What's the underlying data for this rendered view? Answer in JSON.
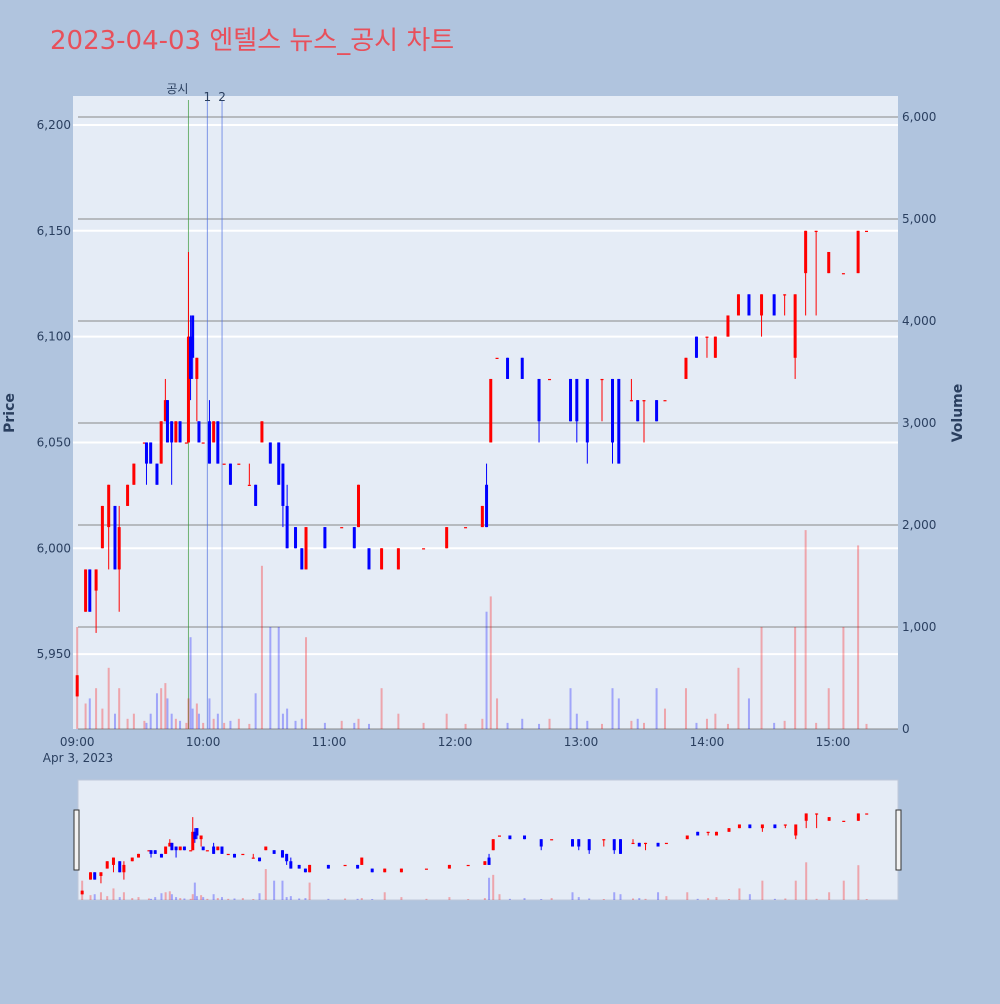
{
  "chart_data": {
    "type": "candlestick",
    "title": "2023-04-03 엔텔스 뉴스_공시 차트",
    "y_label": "Price",
    "y2_label": "Volume",
    "x_date_label": "Apr 3, 2023",
    "increasing_color": "#ff0000",
    "decreasing_color": "#0000ff",
    "xlim": [
      "08:58",
      "15:31"
    ],
    "xticks": [
      "09:00",
      "10:00",
      "11:00",
      "12:00",
      "13:00",
      "14:00",
      "15:00"
    ],
    "ylim": [
      5914.6,
      6213.7
    ],
    "yticks": [
      {
        "value": 5950,
        "label": "5,950"
      },
      {
        "value": 6000,
        "label": "6,000"
      },
      {
        "value": 6050,
        "label": "6,050"
      },
      {
        "value": 6100,
        "label": "6,100"
      },
      {
        "value": 6150,
        "label": "6,150"
      },
      {
        "value": 6200,
        "label": "6,200"
      }
    ],
    "y2lim": [
      0,
      6206
    ],
    "y2ticks": [
      0,
      {
        "value": 1000,
        "label": "1,000"
      },
      {
        "value": 2000,
        "label": "2,000"
      },
      {
        "value": 3000,
        "label": "3,000"
      },
      {
        "value": 4000,
        "label": "4,000"
      },
      {
        "value": 5000,
        "label": "5,000"
      },
      {
        "value": 6000,
        "label": "6,000"
      }
    ],
    "annotations": [
      {
        "x": "09:53",
        "label": "공시",
        "color": "#3a9a3a"
      },
      {
        "x": "10:02",
        "label": "1",
        "color": "#4f6fe0"
      },
      {
        "x": "10:09",
        "label": "2",
        "color": "#4f6fe0"
      }
    ],
    "x": [
      "09:00",
      "09:04",
      "09:06",
      "09:09",
      "09:12",
      "09:15",
      "09:18",
      "09:20",
      "09:24",
      "09:27",
      "09:32",
      "09:33",
      "09:35",
      "09:38",
      "09:40",
      "09:42",
      "09:43",
      "09:45",
      "09:47",
      "09:49",
      "09:52",
      "09:53",
      "09:54",
      "09:55",
      "09:57",
      "09:58",
      "10:00",
      "10:03",
      "10:05",
      "10:07",
      "10:10",
      "10:13",
      "10:17",
      "10:22",
      "10:25",
      "10:28",
      "10:32",
      "10:36",
      "10:38",
      "10:40",
      "10:44",
      "10:47",
      "10:49",
      "10:58",
      "11:06",
      "11:12",
      "11:14",
      "11:19",
      "11:25",
      "11:33",
      "11:45",
      "11:56",
      "12:05",
      "12:13",
      "12:15",
      "12:17",
      "12:20",
      "12:25",
      "12:32",
      "12:40",
      "12:45",
      "12:55",
      "12:58",
      "13:03",
      "13:10",
      "13:15",
      "13:18",
      "13:24",
      "13:27",
      "13:30",
      "13:36",
      "13:40",
      "13:50",
      "13:55",
      "14:00",
      "14:04",
      "14:10",
      "14:15",
      "14:20",
      "14:26",
      "14:32",
      "14:37",
      "14:42",
      "14:47",
      "14:52",
      "14:58",
      "15:05",
      "15:12",
      "15:16"
    ],
    "open": [
      5930,
      5970,
      5990,
      5980,
      6000,
      6010,
      6020,
      5990,
      6020,
      6030,
      6050,
      6050,
      6050,
      6040,
      6040,
      6060,
      6070,
      6060,
      6050,
      6060,
      6050,
      6050,
      6100,
      6110,
      6080,
      6060,
      6050,
      6060,
      6050,
      6060,
      6040,
      6040,
      6040,
      6030,
      6030,
      6050,
      6050,
      6050,
      6040,
      6020,
      6010,
      6000,
      5990,
      6010,
      6010,
      6010,
      6010,
      6000,
      5990,
      5990,
      6000,
      6000,
      6010,
      6010,
      6030,
      6050,
      6090,
      6090,
      6090,
      6080,
      6080,
      6080,
      6080,
      6080,
      6080,
      6080,
      6080,
      6070,
      6070,
      6070,
      6070,
      6070,
      6080,
      6100,
      6100,
      6090,
      6100,
      6110,
      6120,
      6110,
      6120,
      6120,
      6090,
      6130,
      6150,
      6130,
      6130,
      6130,
      6150
    ],
    "high": [
      5940,
      5990,
      5990,
      5990,
      6020,
      6030,
      6020,
      6020,
      6030,
      6040,
      6050,
      6050,
      6050,
      6040,
      6060,
      6080,
      6070,
      6060,
      6060,
      6060,
      6050,
      6140,
      6110,
      6110,
      6090,
      6060,
      6050,
      6070,
      6060,
      6060,
      6040,
      6040,
      6040,
      6040,
      6030,
      6060,
      6050,
      6050,
      6040,
      6030,
      6010,
      6000,
      6010,
      6010,
      6010,
      6010,
      6030,
      6000,
      6000,
      6000,
      6000,
      6010,
      6010,
      6020,
      6040,
      6080,
      6090,
      6090,
      6090,
      6080,
      6080,
      6080,
      6080,
      6080,
      6080,
      6080,
      6080,
      6080,
      6070,
      6070,
      6070,
      6070,
      6090,
      6100,
      6100,
      6100,
      6110,
      6120,
      6120,
      6120,
      6120,
      6120,
      6120,
      6150,
      6150,
      6140,
      6130,
      6150,
      6150
    ],
    "low": [
      5930,
      5970,
      5970,
      5960,
      6000,
      5990,
      5990,
      5970,
      6020,
      6030,
      6050,
      6030,
      6040,
      6030,
      6040,
      6060,
      6050,
      6030,
      6050,
      6050,
      6050,
      6050,
      6070,
      6080,
      6060,
      6050,
      6050,
      6040,
      6050,
      6040,
      6040,
      6030,
      6040,
      6030,
      6020,
      6050,
      6040,
      6030,
      6010,
      6000,
      6000,
      5990,
      5990,
      6000,
      6010,
      6000,
      6010,
      5990,
      5990,
      5990,
      6000,
      6000,
      6010,
      6010,
      6010,
      6050,
      6090,
      6080,
      6080,
      6050,
      6080,
      6060,
      6050,
      6040,
      6060,
      6040,
      6040,
      6070,
      6060,
      6050,
      6060,
      6070,
      6080,
      6090,
      6090,
      6090,
      6100,
      6110,
      6110,
      6100,
      6110,
      6110,
      6080,
      6110,
      6110,
      6130,
      6130,
      6130,
      6150
    ],
    "close": [
      5940,
      5990,
      5970,
      5990,
      6020,
      6030,
      5990,
      6010,
      6030,
      6040,
      6050,
      6040,
      6040,
      6030,
      6060,
      6070,
      6050,
      6050,
      6060,
      6050,
      6050,
      6100,
      6080,
      6090,
      6090,
      6050,
      6050,
      6040,
      6060,
      6040,
      6040,
      6030,
      6040,
      6030,
      6020,
      6060,
      6040,
      6030,
      6020,
      6000,
      6000,
      5990,
      6010,
      6000,
      6010,
      6000,
      6030,
      5990,
      6000,
      6000,
      6000,
      6010,
      6010,
      6020,
      6010,
      6080,
      6090,
      6080,
      6080,
      6060,
      6080,
      6060,
      6060,
      6050,
      6080,
      6050,
      6040,
      6070,
      6060,
      6070,
      6060,
      6070,
      6090,
      6090,
      6100,
      6100,
      6110,
      6120,
      6110,
      6120,
      6110,
      6120,
      6120,
      6150,
      6150,
      6140,
      6130,
      6150,
      6150
    ],
    "volume": [
      1000,
      250,
      300,
      400,
      200,
      600,
      150,
      400,
      100,
      150,
      80,
      60,
      150,
      350,
      400,
      450,
      300,
      150,
      100,
      80,
      60,
      300,
      900,
      200,
      250,
      150,
      60,
      300,
      100,
      150,
      60,
      80,
      100,
      50,
      350,
      1600,
      1000,
      1000,
      150,
      200,
      80,
      100,
      900,
      60,
      80,
      60,
      100,
      50,
      400,
      150,
      60,
      150,
      50,
      100,
      1150,
      1300,
      300,
      60,
      100,
      50,
      100,
      400,
      150,
      80,
      50,
      400,
      300,
      80,
      100,
      60,
      400,
      200,
      400,
      60,
      100,
      150,
      50,
      600,
      300,
      1000,
      60,
      80,
      1000,
      1950,
      60,
      400,
      1000,
      1800,
      50
    ]
  }
}
